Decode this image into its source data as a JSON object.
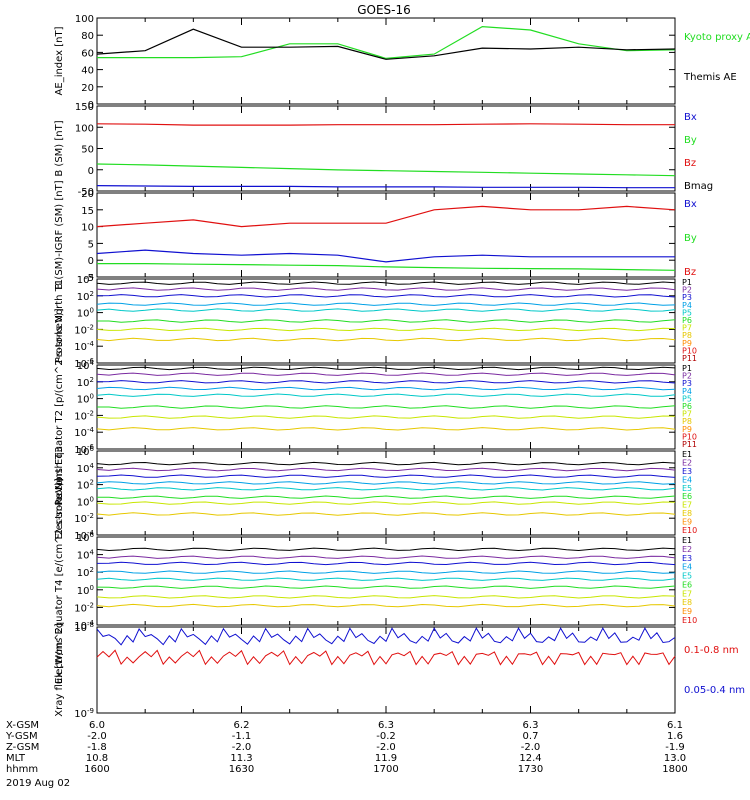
{
  "title": "GOES-16",
  "date_label": "2019 Aug 02",
  "colors": {
    "black": "#000000",
    "red": "#e01010",
    "green": "#22dd22",
    "blue": "#1010d0",
    "cyan": "#00c8e6",
    "yellow": "#e6c800",
    "orange": "#ff8c00",
    "purple": "#7a2aa0"
  },
  "chart_data": [
    {
      "type": "line",
      "ylabel": "AE_index [nT]",
      "ylim": [
        0,
        100
      ],
      "yticks": [
        "100",
        "80",
        "60",
        "40",
        "20",
        "0"
      ],
      "x": [
        1600,
        1610,
        1620,
        1630,
        1640,
        1650,
        1700,
        1710,
        1720,
        1730,
        1740,
        1750,
        1800
      ],
      "series": [
        {
          "name": "Kyoto proxy AE",
          "color": "#22dd22",
          "legend_text": "Kyoto proxy AE",
          "values": [
            54,
            54,
            54,
            55,
            70,
            70,
            53,
            58,
            90,
            86,
            70,
            62,
            63
          ]
        },
        {
          "name": "Themis AE",
          "color": "#000000",
          "legend_text": "Themis AE",
          "values": [
            58,
            62,
            87,
            66,
            66,
            67,
            52,
            56,
            65,
            64,
            66,
            63,
            64
          ]
        }
      ]
    },
    {
      "type": "line",
      "ylabel": "B (SM) [nT]",
      "ylim": [
        -55,
        150
      ],
      "yticks": [
        "150",
        "100",
        "50",
        "0",
        "-50"
      ],
      "series": [
        {
          "name": "Bx",
          "color": "#1010d0",
          "values": [
            -42,
            -43,
            -44,
            -44,
            -44,
            -45,
            -45,
            -45,
            -46,
            -46,
            -46,
            -47,
            -47
          ]
        },
        {
          "name": "By",
          "color": "#22dd22",
          "values": [
            10,
            8,
            5,
            2,
            -1,
            -4,
            -6,
            -8,
            -10,
            -12,
            -14,
            -16,
            -18
          ]
        },
        {
          "name": "Bz",
          "color": "#e01010",
          "values": [
            107,
            106,
            104,
            104,
            104,
            105,
            105,
            105,
            106,
            107,
            106,
            105,
            105
          ]
        },
        {
          "name": "Bmag",
          "color": "#000000",
          "values": []
        }
      ]
    },
    {
      "type": "line",
      "ylabel": "B (SM)-IGRF (SM) [nT]",
      "ylim": [
        -5,
        20
      ],
      "yticks": [
        "20",
        "15",
        "10",
        "5",
        "0",
        "-5"
      ],
      "series": [
        {
          "name": "Bx",
          "color": "#1010d0",
          "values": [
            2,
            3,
            2,
            1.5,
            2,
            1.5,
            -0.5,
            1,
            1.5,
            1,
            1,
            1,
            1
          ]
        },
        {
          "name": "By",
          "color": "#22dd22",
          "values": [
            -1,
            -1,
            -1.2,
            -1.3,
            -1.5,
            -1.6,
            -2,
            -2.2,
            -2.4,
            -2.5,
            -2.6,
            -2.8,
            -3
          ]
        },
        {
          "name": "Bz",
          "color": "#e01010",
          "values": [
            10,
            11,
            12,
            10,
            11,
            11,
            11,
            15,
            16,
            15,
            15,
            16,
            15
          ]
        }
      ]
    },
    {
      "type": "line",
      "ylabel": "Protons North T1",
      "ylim_log10": [
        -6,
        4
      ],
      "yticks": [
        "10^4",
        "10^2",
        "10^0",
        "10^-2",
        "10^-4",
        "10^-6"
      ],
      "channels": [
        "P1",
        "P2",
        "P3",
        "P4",
        "P5",
        "P6",
        "P7",
        "P8",
        "P9",
        "P10",
        "P11"
      ],
      "log_levels": [
        3.5,
        2.8,
        2.0,
        1.0,
        0.3,
        -1.0,
        -2.0,
        -3.2,
        null,
        null,
        null
      ]
    },
    {
      "type": "line",
      "ylabel": "Protons Equator T2 [p/(cm^2-s-sr-keV)]",
      "ylim_log10": [
        -6,
        4
      ],
      "yticks": [
        "10^4",
        "10^2",
        "10^0",
        "10^-2",
        "10^-4",
        "10^-6"
      ],
      "channels": [
        "P1",
        "P2",
        "P3",
        "P4",
        "P5",
        "P6",
        "P7",
        "P8",
        "P9",
        "P10",
        "P11"
      ],
      "log_levels": [
        3.6,
        2.9,
        2.0,
        1.2,
        0.4,
        -1.0,
        -2.2,
        -3.6,
        null,
        null,
        null
      ]
    },
    {
      "type": "line",
      "ylabel": "Electrons North T3",
      "ylim_log10": [
        -4,
        6
      ],
      "yticks": [
        "10^6",
        "10^4",
        "10^2",
        "10^0",
        "10^-2",
        "10^-4"
      ],
      "channels": [
        "E1",
        "E2",
        "E3",
        "E4",
        "E5",
        "E6",
        "E7",
        "E8",
        "E9",
        "E10"
      ],
      "log_levels": [
        4.5,
        3.8,
        3.0,
        2.2,
        1.5,
        0.5,
        -0.2,
        -1.5,
        null,
        null
      ]
    },
    {
      "type": "line",
      "ylabel": "Electrons Equator T4 [e/(cm^2-s-sr-keV)]",
      "ylim_log10": [
        -4,
        6
      ],
      "yticks": [
        "10^6",
        "10^4",
        "10^2",
        "10^0",
        "10^-2",
        "10^-4"
      ],
      "channels": [
        "E1",
        "E2",
        "E3",
        "E4",
        "E5",
        "E6",
        "E7",
        "E8",
        "E9",
        "E10"
      ],
      "log_levels": [
        4.6,
        3.7,
        3.0,
        2.0,
        1.2,
        0.3,
        -0.8,
        -1.8,
        null,
        null
      ]
    },
    {
      "type": "line",
      "ylabel": "Xray flux [W/m^2]",
      "ylim_log10": [
        -9,
        -8
      ],
      "yticks": [
        "10^-8",
        "10^-9"
      ],
      "series": [
        {
          "name": "0.1-0.8 nm",
          "color": "#e01010",
          "legend_text": "0.1-0.8 nm",
          "mean_log10": -8.35
        },
        {
          "name": "0.05-0.4 nm",
          "color": "#1010d0",
          "legend_text": "0.05-0.4 nm",
          "mean_log10": -8.12
        }
      ]
    }
  ],
  "footer": {
    "row_labels": [
      "X-GSM",
      "Y-GSM",
      "Z-GSM",
      "MLT",
      "hhmm"
    ],
    "columns": [
      [
        "6.0",
        "-2.0",
        "-1.8",
        "10.8",
        "1600"
      ],
      [
        "6.2",
        "-1.1",
        "-2.0",
        "11.3",
        "1630"
      ],
      [
        "6.3",
        "-0.2",
        "-2.0",
        "11.9",
        "1700"
      ],
      [
        "6.3",
        "0.7",
        "-2.0",
        "12.4",
        "1730"
      ],
      [
        "6.1",
        "1.6",
        "-1.9",
        "13.0",
        "1800"
      ]
    ]
  }
}
